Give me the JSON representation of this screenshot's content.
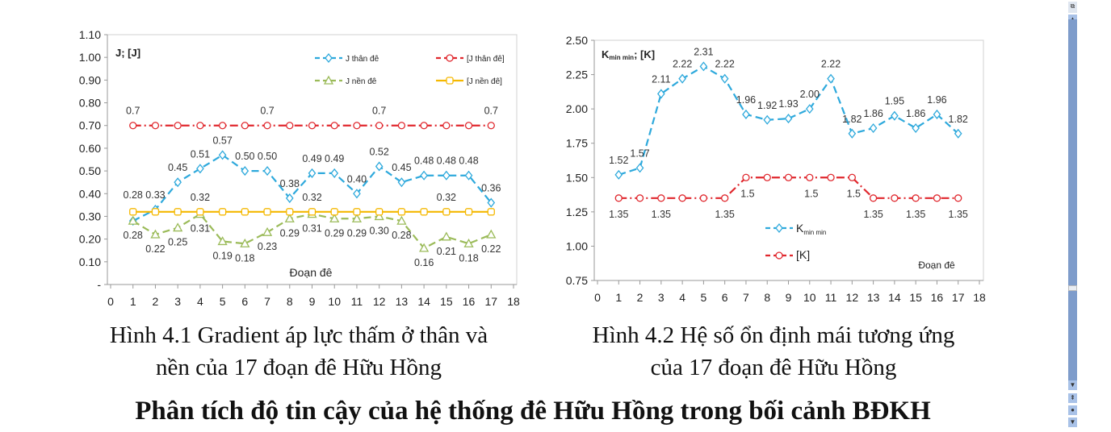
{
  "chart_data": [
    {
      "type": "line",
      "y_axis_title": "J; [J]",
      "xlabel": "Đoạn đê",
      "xlim": [
        0,
        18
      ],
      "ylim": [
        0,
        1.1
      ],
      "x_ticks": [
        "0",
        "1",
        "2",
        "3",
        "4",
        "5",
        "6",
        "7",
        "8",
        "9",
        "10",
        "11",
        "12",
        "13",
        "14",
        "15",
        "16",
        "17",
        "18"
      ],
      "y_ticks": [
        "-",
        "0.10",
        "0.20",
        "0.30",
        "0.40",
        "0.50",
        "0.60",
        "0.70",
        "0.80",
        "0.90",
        "1.00",
        "1.10"
      ],
      "legend": "top-right",
      "x": [
        1,
        2,
        3,
        4,
        5,
        6,
        7,
        8,
        9,
        10,
        11,
        12,
        13,
        14,
        15,
        16,
        17
      ],
      "series": [
        {
          "name": "J thân đê",
          "color": "#2ea9dc",
          "style": "dashed",
          "marker": "diamond",
          "values": [
            0.28,
            0.33,
            0.45,
            0.51,
            0.57,
            0.5,
            0.5,
            0.38,
            0.49,
            0.49,
            0.4,
            0.52,
            0.45,
            0.48,
            0.48,
            0.48,
            0.36
          ],
          "labels": [
            "0.28",
            "0.33",
            "0.45",
            "0.51",
            "0.57",
            "0.50",
            "0.50",
            "0.38",
            "0.49",
            "0.49",
            "0.40",
            "0.52",
            "0.45",
            "0.48",
            "0.48",
            "0.48",
            "0.36"
          ]
        },
        {
          "name": "[J thân đê]",
          "color": "#e0282e",
          "style": "dashdot",
          "marker": "circle",
          "values": [
            0.7,
            0.7,
            0.7,
            0.7,
            0.7,
            0.7,
            0.7,
            0.7,
            0.7,
            0.7,
            0.7,
            0.7,
            0.7,
            0.7,
            0.7,
            0.7,
            0.7
          ],
          "labels": [
            "0.7",
            "",
            "",
            "",
            "",
            "",
            "0.7",
            "",
            "",
            "",
            "",
            "0.7",
            "",
            "",
            "",
            "",
            "0.7"
          ]
        },
        {
          "name": "J nền đê",
          "color": "#9bbb59",
          "style": "dashed",
          "marker": "triangle",
          "values": [
            0.28,
            0.22,
            0.25,
            0.31,
            0.19,
            0.18,
            0.23,
            0.29,
            0.31,
            0.29,
            0.29,
            0.3,
            0.28,
            0.16,
            0.21,
            0.18,
            0.22
          ],
          "labels": [
            "0.28",
            "0.22",
            "0.25",
            "0.31",
            "0.19",
            "0.18",
            "0.23",
            "0.29",
            "0.31",
            "0.29",
            "0.29",
            "0.30",
            "0.28",
            "0.16",
            "0.21",
            "0.18",
            "0.22"
          ]
        },
        {
          "name": "[J nền đê]",
          "color": "#f5b800",
          "style": "solid",
          "marker": "square",
          "values": [
            0.32,
            0.32,
            0.32,
            0.32,
            0.32,
            0.32,
            0.32,
            0.32,
            0.32,
            0.32,
            0.32,
            0.32,
            0.32,
            0.32,
            0.32,
            0.32,
            0.32
          ],
          "labels": [
            "",
            "",
            "",
            "0.32",
            "",
            "",
            "",
            "",
            "0.32",
            "",
            "",
            "",
            "",
            "",
            "0.32",
            "",
            ""
          ]
        }
      ]
    },
    {
      "type": "line",
      "y_axis_title": "Kmin min; [K]",
      "xlabel": "Đoạn đê",
      "xlim": [
        0,
        18
      ],
      "ylim": [
        0.75,
        2.5
      ],
      "x_ticks": [
        "0",
        "1",
        "2",
        "3",
        "4",
        "5",
        "6",
        "7",
        "8",
        "9",
        "10",
        "11",
        "12",
        "13",
        "14",
        "15",
        "16",
        "17",
        "18"
      ],
      "y_ticks": [
        "0.75",
        "1.00",
        "1.25",
        "1.50",
        "1.75",
        "2.00",
        "2.25",
        "2.50"
      ],
      "legend": "center",
      "x": [
        1,
        2,
        3,
        4,
        5,
        6,
        7,
        8,
        9,
        10,
        11,
        12,
        13,
        14,
        15,
        16,
        17
      ],
      "series": [
        {
          "name": "Kmin min",
          "color": "#2ea9dc",
          "style": "dashed",
          "marker": "diamond",
          "values": [
            1.52,
            1.57,
            2.11,
            2.22,
            2.31,
            2.22,
            1.96,
            1.92,
            1.93,
            2.0,
            2.22,
            1.82,
            1.86,
            1.95,
            1.86,
            1.96,
            1.82
          ],
          "labels": [
            "1.52",
            "1.57",
            "2.11",
            "2.22",
            "2.31",
            "2.22",
            "1.96",
            "1.92",
            "1.93",
            "2.00",
            "2.22",
            "1.82",
            "1.86",
            "1.95",
            "1.86",
            "1.96",
            "1.82"
          ]
        },
        {
          "name": "[K]",
          "color": "#e0282e",
          "style": "dashdot",
          "marker": "circle",
          "values": [
            1.35,
            1.35,
            1.35,
            1.35,
            1.35,
            1.35,
            1.5,
            1.5,
            1.5,
            1.5,
            1.5,
            1.5,
            1.35,
            1.35,
            1.35,
            1.35,
            1.35
          ],
          "labels": [
            "1.35",
            "",
            "1.35",
            "",
            "",
            "1.35",
            "1.5",
            "",
            "",
            "1.5",
            "",
            "1.5",
            "1.35",
            "",
            "1.35",
            "",
            "1.35"
          ]
        }
      ]
    }
  ],
  "captions": {
    "fig1_line1": "Hình 4.1 Gradient áp lực thấm ở thân và",
    "fig1_line2": "nền của 17 đoạn đê Hữu Hồng",
    "fig2_line1": "Hình 4.2 Hệ số ổn định mái tương ứng",
    "fig2_line2": "của 17 đoạn đê Hữu Hồng"
  },
  "heading": "Phân tích độ tin cậy của hệ thống đê Hữu Hồng trong bối cảnh BĐKH",
  "scrollbar": {
    "position": 0.74
  }
}
